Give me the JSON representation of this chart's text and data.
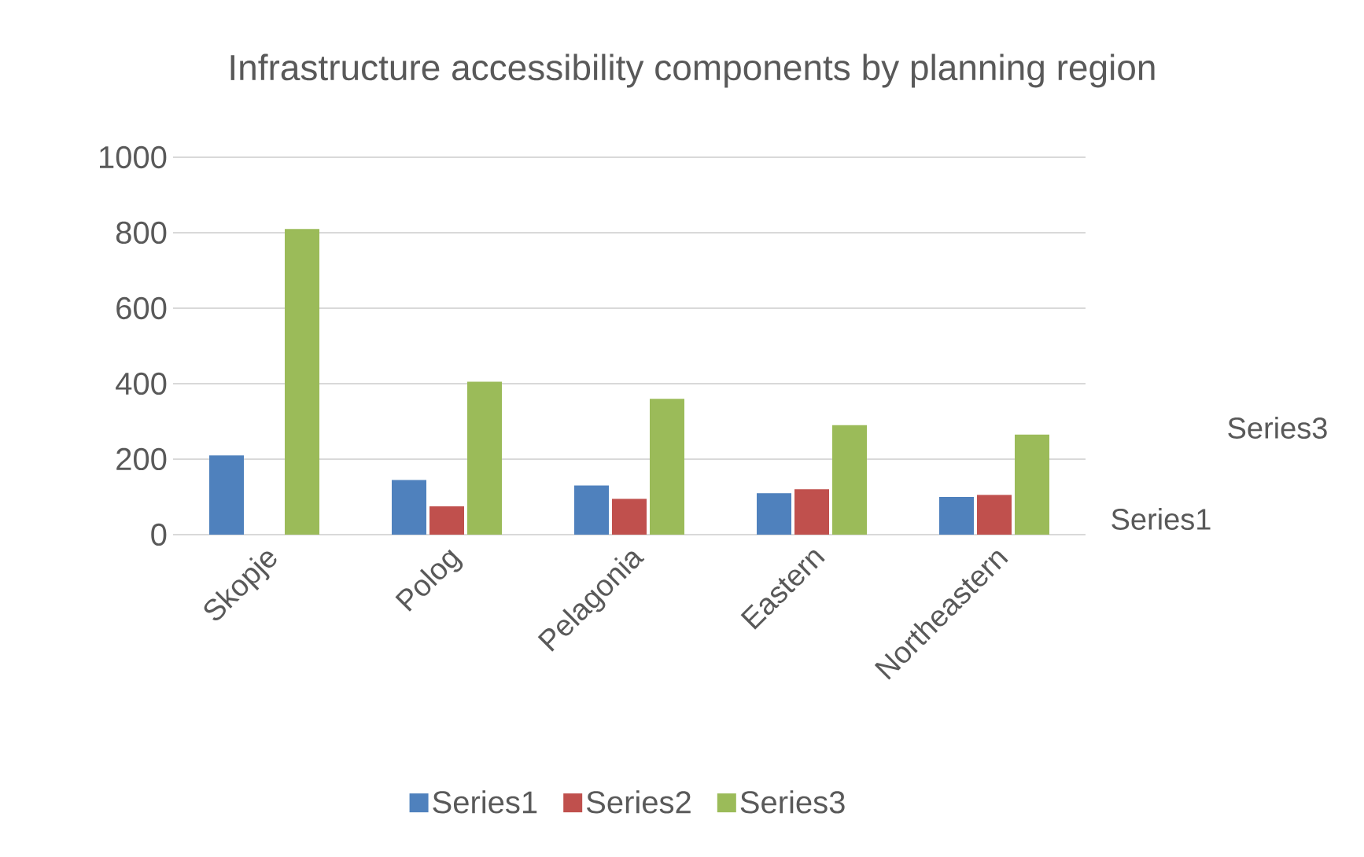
{
  "chart_data": {
    "type": "bar",
    "title": "Infrastructure accessibility components by planning region",
    "categories": [
      "Skopje",
      "Polog",
      "Pelagonia",
      "Eastern",
      "Northeastern"
    ],
    "series": [
      {
        "name": "Series1",
        "color": "#4f81bd",
        "values": [
          210,
          145,
          130,
          110,
          100
        ]
      },
      {
        "name": "Series2",
        "color": "#c0504d",
        "values": [
          0,
          75,
          95,
          120,
          105
        ]
      },
      {
        "name": "Series3",
        "color": "#9bbb59",
        "values": [
          810,
          405,
          360,
          290,
          265
        ]
      }
    ],
    "ylim": [
      0,
      1000
    ],
    "yticks": [
      0,
      200,
      400,
      600,
      800,
      1000
    ],
    "grid": "y",
    "legend": "bottom",
    "annotations": [
      "Series3",
      "Series1"
    ]
  }
}
